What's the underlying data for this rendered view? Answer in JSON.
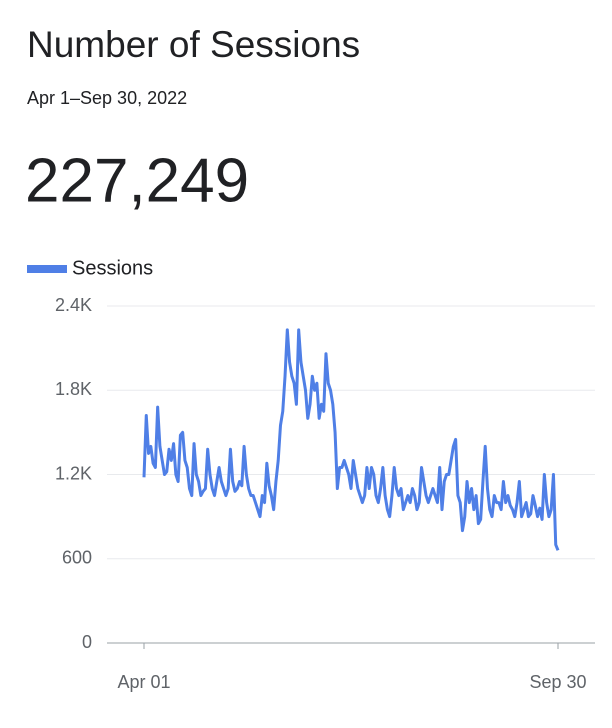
{
  "header": {
    "title": "Number of Sessions",
    "date_range": "Apr 1–Sep 30, 2022",
    "total": "227,249"
  },
  "chart_data": {
    "type": "line",
    "legend": "top-left",
    "grid": true,
    "categories": [
      "Apr 01",
      null,
      null,
      null,
      null,
      null,
      null,
      null,
      null,
      null,
      null,
      null,
      null,
      null,
      null,
      null,
      null,
      null,
      null,
      null,
      null,
      null,
      null,
      null,
      null,
      null,
      null,
      null,
      null,
      null,
      null,
      null,
      null,
      null,
      null,
      null,
      null,
      null,
      null,
      null,
      null,
      null,
      null,
      null,
      null,
      null,
      null,
      null,
      null,
      null,
      null,
      null,
      null,
      null,
      null,
      null,
      null,
      null,
      null,
      null,
      null,
      null,
      null,
      null,
      null,
      null,
      null,
      null,
      null,
      null,
      null,
      null,
      null,
      null,
      null,
      null,
      null,
      null,
      null,
      null,
      null,
      null,
      null,
      null,
      null,
      null,
      null,
      null,
      null,
      null,
      null,
      null,
      null,
      null,
      null,
      null,
      null,
      null,
      null,
      null,
      null,
      null,
      null,
      null,
      null,
      null,
      null,
      null,
      null,
      null,
      null,
      null,
      null,
      null,
      null,
      null,
      null,
      null,
      null,
      null,
      null,
      null,
      null,
      null,
      null,
      null,
      null,
      null,
      null,
      null,
      null,
      null,
      null,
      null,
      null,
      null,
      null,
      null,
      null,
      null,
      null,
      null,
      null,
      null,
      null,
      null,
      null,
      null,
      null,
      null,
      null,
      null,
      null,
      null,
      null,
      null,
      null,
      null,
      null,
      null,
      null,
      null,
      null,
      null,
      null,
      null,
      null,
      null,
      null,
      null,
      null,
      null,
      null,
      null,
      null,
      null,
      null,
      null,
      null,
      null,
      null,
      null,
      "Sep 30"
    ],
    "series": [
      {
        "name": "Sessions",
        "color": "#4f7fe6",
        "values": [
          1180,
          1620,
          1350,
          1400,
          1280,
          1250,
          1680,
          1400,
          1300,
          1200,
          1220,
          1380,
          1300,
          1420,
          1200,
          1150,
          1480,
          1500,
          1300,
          1250,
          1100,
          1050,
          1420,
          1200,
          1150,
          1050,
          1080,
          1100,
          1380,
          1200,
          1100,
          1050,
          1150,
          1250,
          1150,
          1100,
          1050,
          1100,
          1380,
          1150,
          1080,
          1100,
          1150,
          1120,
          1400,
          1200,
          1100,
          1050,
          1050,
          1000,
          950,
          900,
          1050,
          1000,
          1280,
          1120,
          1050,
          950,
          1150,
          1300,
          1550,
          1650,
          1900,
          2230,
          2000,
          1900,
          1850,
          1700,
          2230,
          2000,
          1900,
          1800,
          1600,
          1700,
          1900,
          1800,
          1850,
          1600,
          1700,
          1650,
          2060,
          1850,
          1800,
          1700,
          1500,
          1100,
          1250,
          1250,
          1300,
          1250,
          1200,
          1100,
          1300,
          1200,
          1100,
          1050,
          1000,
          1050,
          1250,
          1100,
          1250,
          1200,
          1050,
          1000,
          1100,
          1250,
          1050,
          950,
          900,
          1050,
          1250,
          1100,
          1050,
          1100,
          950,
          1000,
          1050,
          1000,
          1100,
          1050,
          950,
          1000,
          1250,
          1150,
          1050,
          1000,
          1050,
          1100,
          1050,
          1000,
          1250,
          950,
          1150,
          1200,
          1200,
          1300,
          1400,
          1450,
          1050,
          1000,
          800,
          900,
          1150,
          1000,
          1100,
          950,
          1050,
          850,
          880,
          1150,
          1400,
          1100,
          950,
          900,
          1050,
          1000,
          1000,
          950,
          1150,
          1000,
          1050,
          980,
          950,
          900,
          1000,
          1150,
          900,
          950,
          1000,
          900,
          920,
          1050,
          980,
          900,
          960,
          880,
          1200,
          1000,
          900,
          950,
          1200,
          700,
          660
        ]
      }
    ],
    "ylim": [
      0,
      2400
    ],
    "yticks": [
      0,
      600,
      {
        "value": 1200,
        "label": "1.2K"
      },
      {
        "value": 1800,
        "label": "1.8K"
      },
      {
        "value": 2400,
        "label": "2.4K"
      }
    ]
  }
}
